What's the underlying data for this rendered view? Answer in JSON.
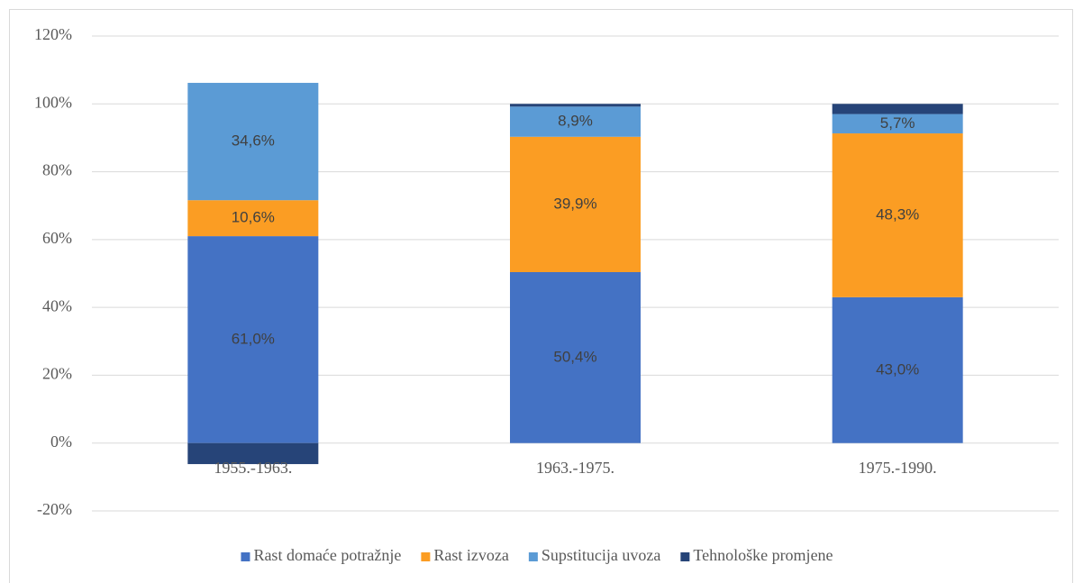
{
  "chart_data": {
    "type": "stacked_bar",
    "categories": [
      "1955.-1963.",
      "1963.-1975.",
      "1975.-1990."
    ],
    "series": [
      {
        "name": "Rast domaće potražnje",
        "color": "#4472c4",
        "values": [
          61.0,
          50.4,
          43.0
        ],
        "value_labels": [
          "61,0%",
          "50,4%",
          "43,0%"
        ]
      },
      {
        "name": "Rast izvoza",
        "color": "#fb9d23",
        "values": [
          10.6,
          39.9,
          48.3
        ],
        "value_labels": [
          "10,6%",
          "39,9%",
          "48,3%"
        ]
      },
      {
        "name": "Supstitucija uvoza",
        "color": "#5b9bd5",
        "values": [
          34.6,
          8.9,
          5.7
        ],
        "value_labels": [
          "34,6%",
          "8,9%",
          "5,7%"
        ]
      },
      {
        "name": "Tehnološke promjene",
        "color": "#264478",
        "values": [
          -6.2,
          0.8,
          3.0
        ]
      }
    ],
    "ylim": [
      -20,
      120
    ],
    "yticks": [
      {
        "value": -20,
        "label": "-20%"
      },
      {
        "value": 0,
        "label": "0%"
      },
      {
        "value": 20,
        "label": "20%"
      },
      {
        "value": 40,
        "label": "40%"
      },
      {
        "value": 60,
        "label": "60%"
      },
      {
        "value": 80,
        "label": "80%"
      },
      {
        "value": 100,
        "label": "100%"
      },
      {
        "value": 120,
        "label": "120%"
      }
    ],
    "grid": true,
    "legend": "bottom"
  }
}
